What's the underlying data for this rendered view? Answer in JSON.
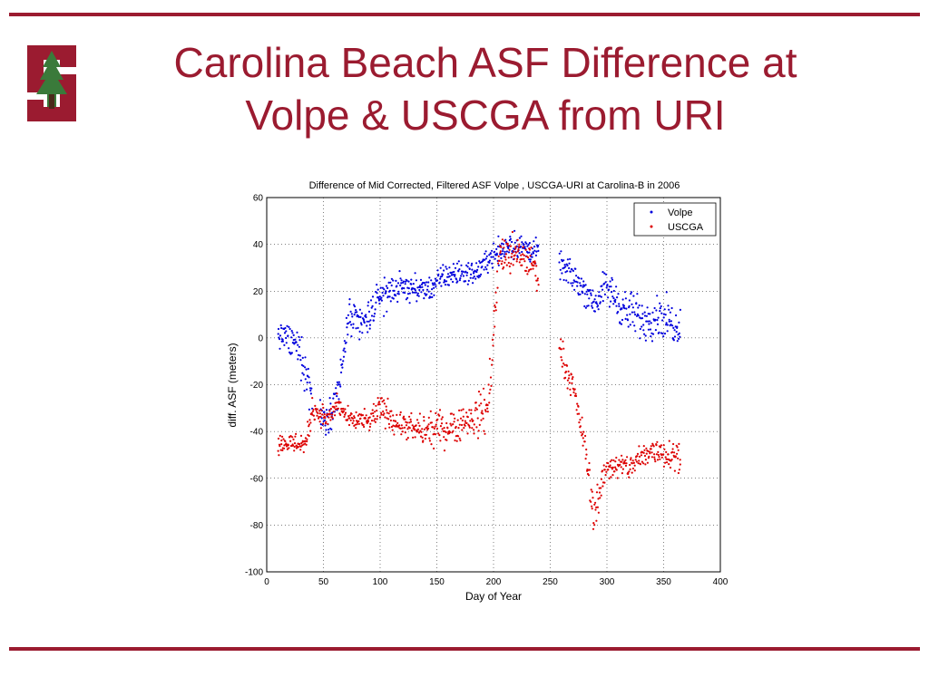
{
  "slide": {
    "title_line1": "Carolina Beach ASF Difference at",
    "title_line2": "Volpe & USCGA from URI",
    "accent_color": "#9b1b30",
    "logo": "stanford-tree-logo"
  },
  "chart_data": {
    "type": "scatter",
    "title": "Difference of Mid Corrected, Filtered ASF Volpe , USCGA-URI at Carolina-B in 2006",
    "xlabel": "Day of Year",
    "ylabel": "diff. ASF (meters)",
    "xlim": [
      0,
      400
    ],
    "ylim": [
      -100,
      60
    ],
    "xticks": [
      "0",
      "50",
      "100",
      "150",
      "200",
      "250",
      "300",
      "350",
      "400"
    ],
    "yticks": [
      "60",
      "40",
      "20",
      "0",
      "-20",
      "-40",
      "-60",
      "-80",
      "-100"
    ],
    "grid": true,
    "legend_position": "top-right",
    "series": [
      {
        "name": "Volpe",
        "color": "#0000dd",
        "trend": [
          {
            "x": 10,
            "y": 2,
            "spread": 5
          },
          {
            "x": 22,
            "y": -2,
            "spread": 6
          },
          {
            "x": 30,
            "y": -6,
            "spread": 8
          },
          {
            "x": 38,
            "y": -22,
            "spread": 10
          },
          {
            "x": 50,
            "y": -35,
            "spread": 6
          },
          {
            "x": 58,
            "y": -30,
            "spread": 7
          },
          {
            "x": 65,
            "y": -18,
            "spread": 7
          },
          {
            "x": 72,
            "y": 8,
            "spread": 8
          },
          {
            "x": 85,
            "y": 5,
            "spread": 8
          },
          {
            "x": 100,
            "y": 18,
            "spread": 7
          },
          {
            "x": 120,
            "y": 22,
            "spread": 5
          },
          {
            "x": 140,
            "y": 20,
            "spread": 5
          },
          {
            "x": 160,
            "y": 27,
            "spread": 5
          },
          {
            "x": 185,
            "y": 28,
            "spread": 4
          },
          {
            "x": 200,
            "y": 36,
            "spread": 5
          },
          {
            "x": 215,
            "y": 40,
            "spread": 6
          },
          {
            "x": 235,
            "y": 37,
            "spread": 5
          },
          {
            "x": 262,
            "y": 30,
            "spread": 5
          },
          {
            "x": 278,
            "y": 22,
            "spread": 6
          },
          {
            "x": 290,
            "y": 15,
            "spread": 6
          },
          {
            "x": 300,
            "y": 22,
            "spread": 7
          },
          {
            "x": 315,
            "y": 12,
            "spread": 8
          },
          {
            "x": 330,
            "y": 8,
            "spread": 9
          },
          {
            "x": 345,
            "y": 10,
            "spread": 8
          },
          {
            "x": 365,
            "y": 5,
            "spread": 8
          }
        ],
        "gaps": [
          [
            40,
            47
          ],
          [
            240,
            258
          ]
        ]
      },
      {
        "name": "USCGA",
        "color": "#dd0000",
        "trend": [
          {
            "x": 10,
            "y": -45,
            "spread": 4
          },
          {
            "x": 22,
            "y": -45,
            "spread": 4
          },
          {
            "x": 35,
            "y": -45,
            "spread": 5
          },
          {
            "x": 40,
            "y": -30,
            "spread": 5
          },
          {
            "x": 55,
            "y": -35,
            "spread": 4
          },
          {
            "x": 62,
            "y": -28,
            "spread": 4
          },
          {
            "x": 72,
            "y": -35,
            "spread": 4
          },
          {
            "x": 90,
            "y": -36,
            "spread": 4
          },
          {
            "x": 100,
            "y": -30,
            "spread": 6
          },
          {
            "x": 120,
            "y": -38,
            "spread": 5
          },
          {
            "x": 140,
            "y": -40,
            "spread": 6
          },
          {
            "x": 160,
            "y": -38,
            "spread": 7
          },
          {
            "x": 180,
            "y": -35,
            "spread": 7
          },
          {
            "x": 195,
            "y": -30,
            "spread": 10
          },
          {
            "x": 205,
            "y": 35,
            "spread": 8
          },
          {
            "x": 220,
            "y": 35,
            "spread": 8
          },
          {
            "x": 235,
            "y": 32,
            "spread": 6
          },
          {
            "x": 262,
            "y": -10,
            "spread": 6
          },
          {
            "x": 272,
            "y": -25,
            "spread": 4
          },
          {
            "x": 282,
            "y": -50,
            "spread": 6
          },
          {
            "x": 288,
            "y": -75,
            "spread": 8
          },
          {
            "x": 300,
            "y": -55,
            "spread": 5
          },
          {
            "x": 320,
            "y": -55,
            "spread": 5
          },
          {
            "x": 340,
            "y": -48,
            "spread": 6
          },
          {
            "x": 365,
            "y": -50,
            "spread": 6
          }
        ],
        "gaps": [
          [
            240,
            258
          ]
        ]
      }
    ]
  }
}
